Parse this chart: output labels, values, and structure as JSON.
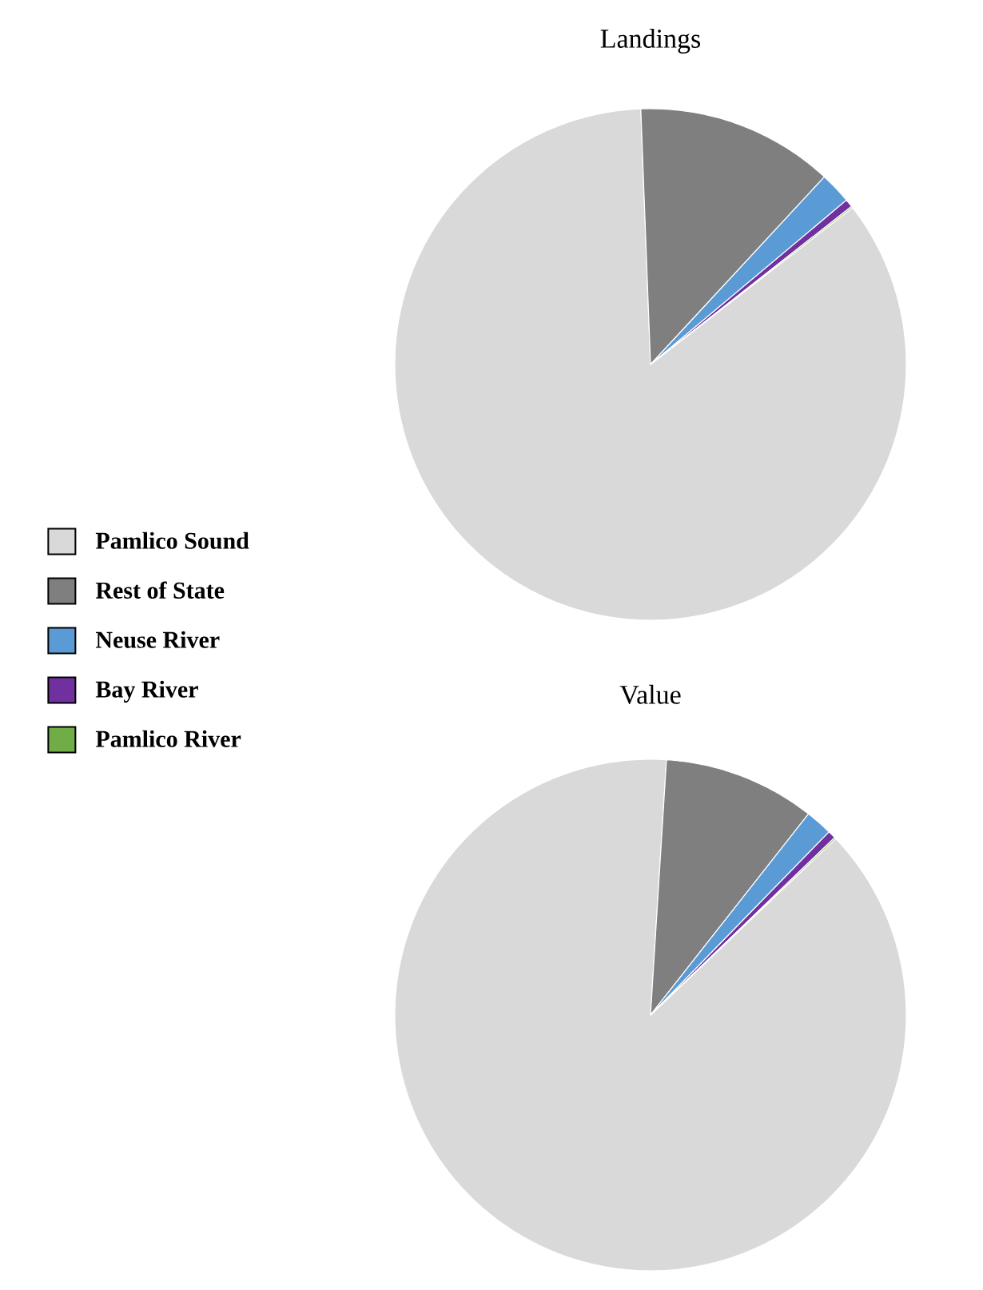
{
  "chart_data": [
    {
      "type": "pie",
      "title": "Landings",
      "categories": [
        "Pamlico Sound",
        "Rest of State",
        "Neuse River",
        "Bay River",
        "Pamlico River"
      ],
      "values": [
        84.9,
        12.5,
        2,
        0.5,
        0.1
      ],
      "colors": [
        "#d9d9d9",
        "#7f7f7f",
        "#5b9bd5",
        "#7030a0",
        "#70ad47"
      ],
      "legend": "left"
    },
    {
      "type": "pie",
      "title": "Value",
      "categories": [
        null,
        null,
        null,
        null,
        null
      ],
      "values": [
        88.1,
        9.6,
        1.7,
        0.5,
        0.1
      ],
      "colors": [
        "#d9d9d9",
        "#7f7f7f",
        "#5b9bd5",
        "#7030a0",
        "#70ad47"
      ],
      "legend": false
    }
  ]
}
